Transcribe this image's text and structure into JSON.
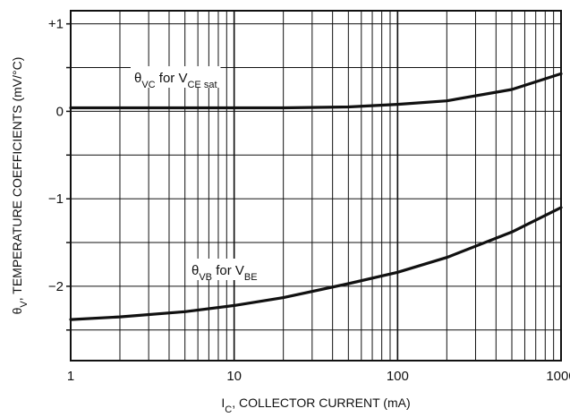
{
  "chart_data": {
    "type": "line",
    "x_scale": "log",
    "xlim": [
      1,
      1000
    ],
    "ylim": [
      -2.85,
      1.15
    ],
    "grid": true,
    "x_ticks": [
      "1",
      "10",
      "100",
      "1000"
    ],
    "y_ticks": [
      "+1",
      "0",
      "−1",
      "−2"
    ],
    "y_tick_values": [
      1,
      0,
      -1,
      -2
    ],
    "xlabel": {
      "symbol": "I",
      "sub": "C",
      "rest": ", COLLECTOR CURRENT (mA)"
    },
    "ylabel": {
      "symbol": "θ",
      "sub": "V",
      "rest": ", TEMPERATURE COEFFICIENTS (mV/°C)"
    },
    "series": [
      {
        "label": {
          "theta": "θ",
          "theta_sub": "VC",
          "for_text": " for V",
          "v_sub": "CE sat"
        },
        "color": "#111111",
        "x": [
          1,
          2,
          5,
          10,
          20,
          50,
          100,
          200,
          500,
          1000
        ],
        "y": [
          0.04,
          0.04,
          0.04,
          0.04,
          0.04,
          0.05,
          0.08,
          0.12,
          0.25,
          0.43
        ]
      },
      {
        "label": {
          "theta": "θ",
          "theta_sub": "VB",
          "for_text": " for V",
          "v_sub": "BE"
        },
        "color": "#111111",
        "x": [
          1,
          2,
          5,
          10,
          20,
          50,
          100,
          200,
          500,
          1000
        ],
        "y": [
          -2.38,
          -2.35,
          -2.29,
          -2.22,
          -2.13,
          -1.97,
          -1.84,
          -1.67,
          -1.38,
          -1.1
        ]
      }
    ]
  }
}
